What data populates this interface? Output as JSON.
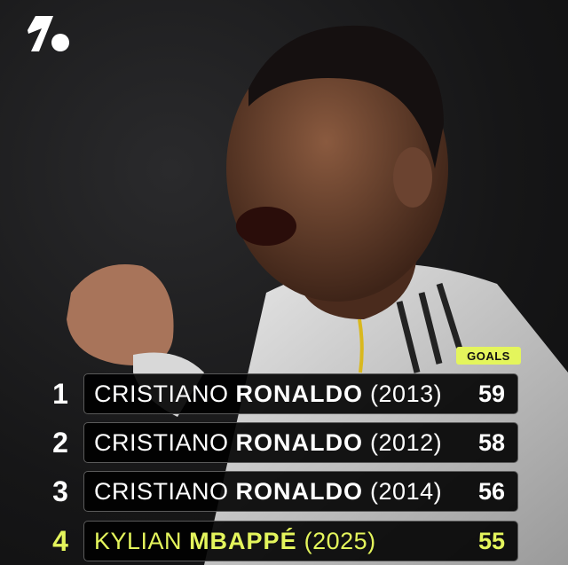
{
  "brand": {
    "logo": "OneFootball",
    "accent_color": "#e4f55c"
  },
  "header": {
    "goals_label": "GOALS"
  },
  "rows": [
    {
      "rank": "1",
      "first": "CRISTIANO",
      "last": "RONALDO",
      "year": "(2013)",
      "goals": "59",
      "highlight": false
    },
    {
      "rank": "2",
      "first": "CRISTIANO",
      "last": "RONALDO",
      "year": "(2012)",
      "goals": "58",
      "highlight": false
    },
    {
      "rank": "3",
      "first": "CRISTIANO",
      "last": "RONALDO",
      "year": "(2014)",
      "goals": "56",
      "highlight": false
    },
    {
      "rank": "4",
      "first": "KYLIAN",
      "last": "MBAPPÉ",
      "year": "(2025)",
      "goals": "55",
      "highlight": true
    }
  ]
}
